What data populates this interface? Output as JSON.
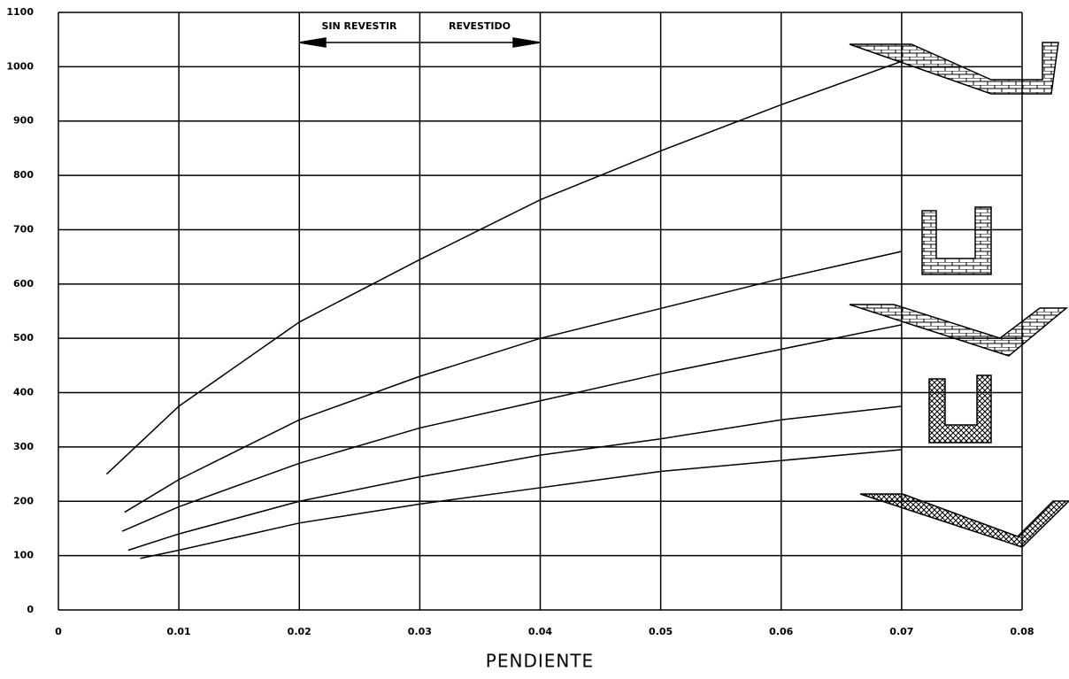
{
  "chart_data": {
    "type": "line",
    "x_label": "PENDIENTE",
    "annotations": [
      "SIN REVESTIR",
      "REVESTIDO"
    ],
    "xlim": [
      0,
      0.08
    ],
    "xticks": [
      0,
      0.01,
      0.02,
      0.03,
      0.04,
      0.05,
      0.06,
      0.07,
      0.08
    ],
    "ylim": [
      0,
      1100
    ],
    "yticks": [
      0,
      100,
      200,
      300,
      400,
      500,
      600,
      700,
      800,
      900,
      1000,
      1100
    ],
    "grid": true,
    "series": [
      {
        "color": "#000000",
        "x": [
          0.004,
          0.01,
          0.02,
          0.03,
          0.04,
          0.05,
          0.06,
          0.07
        ],
        "values": [
          250,
          375,
          530,
          645,
          755,
          845,
          930,
          1010
        ]
      },
      {
        "color": "#000000",
        "x": [
          0.0055,
          0.01,
          0.02,
          0.03,
          0.04,
          0.05,
          0.06,
          0.07
        ],
        "values": [
          180,
          240,
          350,
          430,
          500,
          555,
          610,
          660
        ]
      },
      {
        "color": "#000000",
        "x": [
          0.0053,
          0.01,
          0.02,
          0.03,
          0.04,
          0.05,
          0.06,
          0.07
        ],
        "values": [
          145,
          190,
          270,
          335,
          385,
          435,
          480,
          525
        ]
      },
      {
        "color": "#000000",
        "x": [
          0.0058,
          0.01,
          0.02,
          0.03,
          0.04,
          0.05,
          0.06,
          0.07
        ],
        "values": [
          110,
          140,
          200,
          245,
          285,
          315,
          350,
          375
        ]
      },
      {
        "color": "#000000",
        "x": [
          0.0068,
          0.01,
          0.02,
          0.03,
          0.04,
          0.05,
          0.06,
          0.07
        ],
        "values": [
          95,
          110,
          160,
          195,
          225,
          255,
          275,
          295
        ]
      }
    ]
  }
}
